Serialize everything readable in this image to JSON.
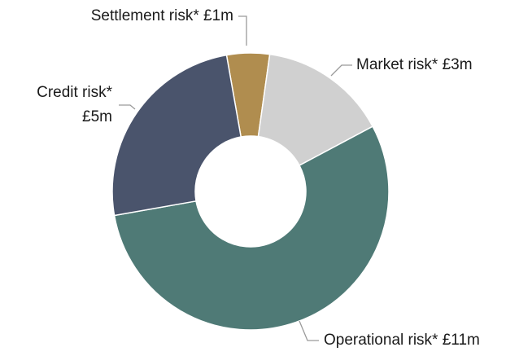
{
  "chart_data": {
    "type": "donut",
    "categories": [
      "Settlement risk*",
      "Market risk*",
      "Operational risk*",
      "Credit risk*"
    ],
    "values": [
      1,
      3,
      11,
      5
    ],
    "value_labels": [
      "£1m",
      "£3m",
      "£11m",
      "£5m"
    ],
    "colors": [
      "#b08d4f",
      "#d0d0d0",
      "#4f7a76",
      "#4a546c"
    ]
  }
}
